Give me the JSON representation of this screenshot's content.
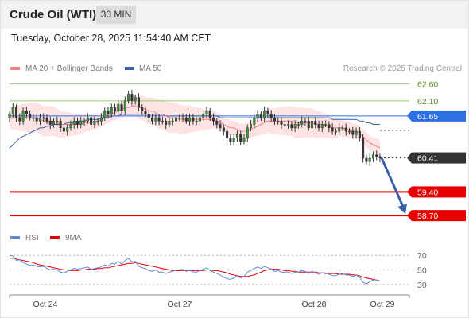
{
  "header": {
    "title": "Crude Oil (WTI)",
    "timeframe": "30 MIN"
  },
  "timestamp": "Tuesday, October 28, 2025 11:54:40 AM CET",
  "legend": {
    "ma20_label": "MA 20 + Bollinger Bands",
    "ma50_label": "MA 50",
    "rsi_label": "RSI",
    "ma9_label": "9MA"
  },
  "research": "Research © 2025 Trading Central",
  "colors": {
    "ma20": "#f08080",
    "ma50": "#3a5fa8",
    "band_fill": "#fde3e3",
    "resistance": "#9ccc65",
    "support": "#e60000",
    "blue_tag": "#2f6fe4",
    "price_tag": "#333333",
    "rsi": "#5b8ad8",
    "rsi_ma": "#e60000"
  },
  "chart_data": [
    {
      "type": "candlestick",
      "title": "Crude Oil (WTI)",
      "timeframe": "30 MIN",
      "ylim": [
        58.35,
        62.85
      ],
      "x_ticks": [
        "Oct 24",
        "Oct 27",
        "Oct 28",
        "Oct 29"
      ],
      "levels": [
        {
          "label": "62.60",
          "value": 62.6,
          "kind": "resistance"
        },
        {
          "label": "62.10",
          "value": 62.1,
          "kind": "resistance"
        },
        {
          "label": "61.65",
          "value": 61.65,
          "kind": "pivot"
        },
        {
          "label": "60.41",
          "value": 60.41,
          "kind": "last_price"
        },
        {
          "label": "59.40",
          "value": 59.4,
          "kind": "support"
        },
        {
          "label": "58.70",
          "value": 58.7,
          "kind": "support"
        }
      ],
      "forecast_arrow": {
        "from": 60.41,
        "to": 58.7
      },
      "closes": [
        61.7,
        61.9,
        61.6,
        61.5,
        61.8,
        61.7,
        61.6,
        61.6,
        61.5,
        61.6,
        61.6,
        61.5,
        61.4,
        61.5,
        61.5,
        61.3,
        61.2,
        61.3,
        61.4,
        61.5,
        61.4,
        61.5,
        61.5,
        61.6,
        61.4,
        61.5,
        61.5,
        61.6,
        61.8,
        61.7,
        61.9,
        61.8,
        62.0,
        61.8,
        62.1,
        62.3,
        62.1,
        62.2,
        61.9,
        61.8,
        61.7,
        61.6,
        61.5,
        61.6,
        61.5,
        61.5,
        61.4,
        61.5,
        61.5,
        61.6,
        61.6,
        61.6,
        61.5,
        61.6,
        61.5,
        61.5,
        61.6,
        61.7,
        61.8,
        61.6,
        61.5,
        61.4,
        61.3,
        61.2,
        61.0,
        60.9,
        61.0,
        61.1,
        60.9,
        61.0,
        61.3,
        61.4,
        61.6,
        61.7,
        61.6,
        61.8,
        61.7,
        61.6,
        61.5,
        61.5,
        61.4,
        61.4,
        61.4,
        61.3,
        61.4,
        61.4,
        61.5,
        61.5,
        61.3,
        61.5,
        61.4,
        61.3,
        61.4,
        61.4,
        61.3,
        61.2,
        61.2,
        61.3,
        61.3,
        61.2,
        61.2,
        61.1,
        61.2,
        61.0,
        60.4,
        60.3,
        60.4,
        60.5,
        60.45,
        60.41
      ],
      "ma20": [
        61.6,
        61.6,
        61.6,
        61.6,
        61.6,
        61.6,
        61.6,
        61.6,
        61.6,
        61.55,
        61.5,
        61.5,
        61.5,
        61.5,
        61.45,
        61.4,
        61.4,
        61.4,
        61.4,
        61.4,
        61.4,
        61.4,
        61.45,
        61.45,
        61.45,
        61.5,
        61.5,
        61.55,
        61.6,
        61.65,
        61.7,
        61.75,
        61.8,
        61.85,
        61.9,
        61.9,
        61.95,
        61.95,
        61.9,
        61.9,
        61.85,
        61.8,
        61.8,
        61.75,
        61.7,
        61.7,
        61.65,
        61.6,
        61.6,
        61.6,
        61.55,
        61.55,
        61.55,
        61.55,
        61.55,
        61.55,
        61.55,
        61.55,
        61.55,
        61.55,
        61.55,
        61.5,
        61.45,
        61.4,
        61.35,
        61.3,
        61.3,
        61.25,
        61.2,
        61.2,
        61.2,
        61.25,
        61.3,
        61.35,
        61.4,
        61.45,
        61.5,
        61.5,
        61.5,
        61.5,
        61.5,
        61.5,
        61.5,
        61.5,
        61.45,
        61.45,
        61.45,
        61.45,
        61.45,
        61.45,
        61.4,
        61.4,
        61.4,
        61.35,
        61.35,
        61.3,
        61.3,
        61.3,
        61.3,
        61.25,
        61.25,
        61.2,
        61.2,
        61.15,
        61.05,
        60.95,
        60.85,
        60.8,
        60.75,
        60.7
      ],
      "ma50": [
        60.7,
        60.8,
        60.9,
        61.0,
        61.05,
        61.1,
        61.15,
        61.2,
        61.25,
        61.3,
        61.3,
        61.35,
        61.35,
        61.4,
        61.4,
        61.4,
        61.4,
        61.45,
        61.45,
        61.45,
        61.5,
        61.5,
        61.5,
        61.55,
        61.55,
        61.55,
        61.55,
        61.6,
        61.6,
        61.6,
        61.65,
        61.65,
        61.65,
        61.7,
        61.7,
        61.7,
        61.7,
        61.7,
        61.7,
        61.7,
        61.7,
        61.7,
        61.7,
        61.7,
        61.7,
        61.7,
        61.65,
        61.65,
        61.65,
        61.65,
        61.65,
        61.65,
        61.65,
        61.65,
        61.65,
        61.65,
        61.65,
        61.65,
        61.65,
        61.65,
        61.65,
        61.65,
        61.6,
        61.6,
        61.6,
        61.6,
        61.6,
        61.6,
        61.6,
        61.6,
        61.6,
        61.6,
        61.6,
        61.6,
        61.6,
        61.6,
        61.6,
        61.6,
        61.6,
        61.6,
        61.6,
        61.6,
        61.6,
        61.6,
        61.6,
        61.6,
        61.6,
        61.6,
        61.6,
        61.6,
        61.6,
        61.6,
        61.6,
        61.6,
        61.6,
        61.55,
        61.55,
        61.55,
        61.55,
        61.55,
        61.55,
        61.55,
        61.55,
        61.5,
        61.5,
        61.45,
        61.45,
        61.4,
        61.4,
        61.4
      ]
    },
    {
      "type": "line",
      "title": "RSI",
      "ylim": [
        20,
        80
      ],
      "y_ticks": [
        70,
        50,
        30
      ],
      "series": [
        {
          "name": "RSI",
          "values": [
            70,
            69,
            63,
            64,
            60,
            58,
            56,
            57,
            55,
            54,
            55,
            52,
            50,
            51,
            50,
            47,
            46,
            48,
            50,
            52,
            51,
            52,
            53,
            54,
            51,
            52,
            53,
            54,
            57,
            55,
            59,
            58,
            62,
            58,
            63,
            66,
            61,
            62,
            55,
            53,
            52,
            49,
            48,
            50,
            47,
            47,
            45,
            47,
            48,
            50,
            50,
            51,
            48,
            50,
            47,
            47,
            49,
            51,
            53,
            49,
            47,
            45,
            43,
            40,
            38,
            37,
            39,
            42,
            39,
            41,
            47,
            49,
            52,
            54,
            52,
            55,
            53,
            51,
            48,
            49,
            47,
            47,
            47,
            45,
            47,
            47,
            49,
            48,
            45,
            48,
            46,
            44,
            46,
            46,
            44,
            42,
            42,
            44,
            45,
            43,
            43,
            41,
            43,
            40,
            33,
            31,
            34,
            36,
            36,
            35
          ]
        },
        {
          "name": "9MA",
          "values": [
            66,
            66,
            65,
            64,
            63,
            62,
            61,
            60,
            58,
            57,
            56,
            55,
            54,
            53,
            52,
            51,
            50,
            50,
            49,
            49,
            49,
            50,
            50,
            51,
            51,
            51,
            52,
            52,
            53,
            53,
            54,
            55,
            56,
            57,
            58,
            59,
            59,
            60,
            59,
            58,
            57,
            56,
            55,
            54,
            53,
            52,
            51,
            50,
            49,
            49,
            49,
            49,
            49,
            49,
            49,
            49,
            49,
            49,
            50,
            50,
            49,
            49,
            48,
            47,
            46,
            44,
            43,
            42,
            41,
            41,
            41,
            42,
            43,
            45,
            47,
            49,
            50,
            51,
            51,
            51,
            50,
            49,
            49,
            48,
            48,
            47,
            47,
            47,
            47,
            47,
            47,
            46,
            46,
            45,
            45,
            45,
            45,
            44,
            44,
            44,
            44,
            43,
            43,
            42,
            40,
            39,
            38,
            37,
            36,
            35
          ]
        }
      ]
    }
  ]
}
